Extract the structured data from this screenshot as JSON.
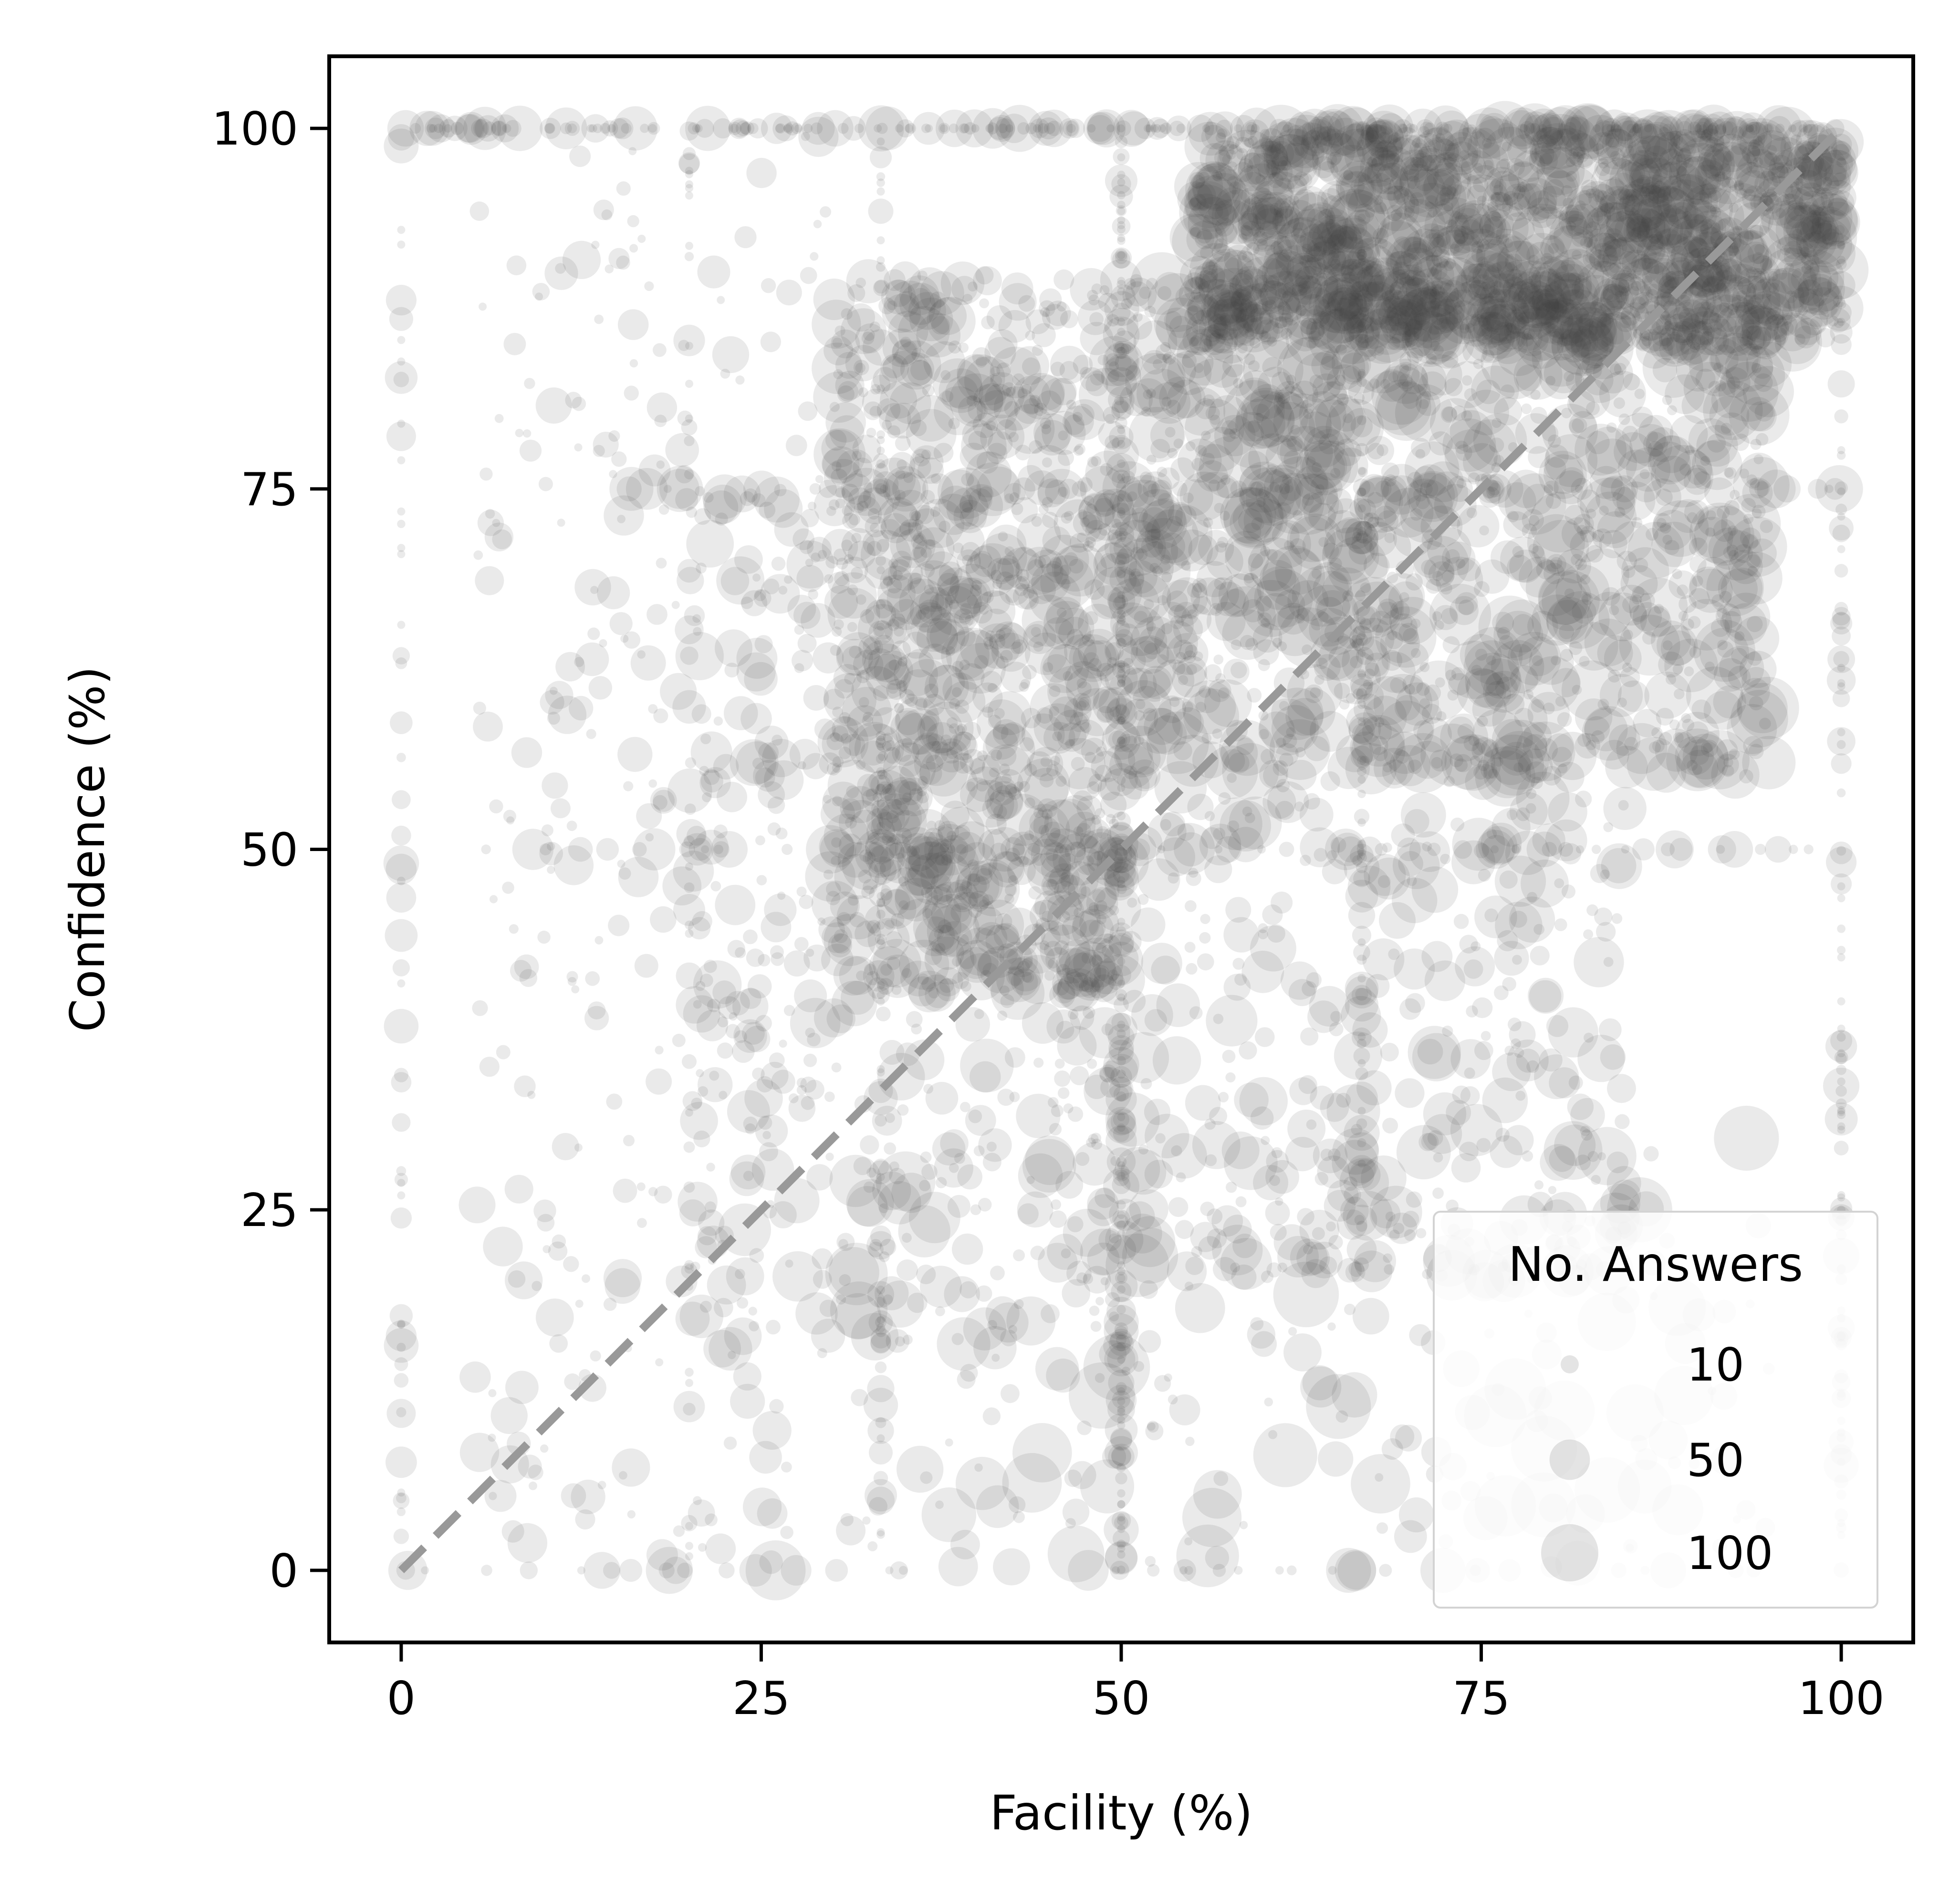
{
  "chart_data": {
    "type": "scatter",
    "title": "",
    "xlabel": "Facility (%)",
    "ylabel": "Confidence (%)",
    "xlim": [
      -5,
      105
    ],
    "ylim": [
      -5,
      105
    ],
    "xticks": [
      0,
      25,
      50,
      75,
      100
    ],
    "yticks": [
      0,
      25,
      50,
      75,
      100
    ],
    "tick_labels": {
      "x": [
        "0",
        "25",
        "50",
        "75",
        "100"
      ],
      "y": [
        "0",
        "25",
        "50",
        "75",
        "100"
      ]
    },
    "grid": false,
    "reference_line": {
      "style": "dashed",
      "color": "#999999",
      "from": [
        0,
        0
      ],
      "to": [
        100,
        100
      ]
    },
    "point_color": "#404040",
    "legend": {
      "title": "No. Answers",
      "placement": "bottom-right",
      "entries": [
        {
          "label": "10",
          "size_value": 10
        },
        {
          "label": "50",
          "size_value": 50
        },
        {
          "label": "100",
          "size_value": 100
        }
      ]
    },
    "dense_regions": [
      {
        "x_range": [
          55,
          100
        ],
        "y_range": [
          85,
          100
        ],
        "n": 1500,
        "size_range": [
          3,
          120
        ]
      },
      {
        "x_range": [
          50,
          95
        ],
        "y_range": [
          55,
          90
        ],
        "n": 1400,
        "size_range": [
          3,
          120
        ]
      },
      {
        "x_range": [
          30,
          50
        ],
        "y_range": [
          40,
          90
        ],
        "n": 900,
        "size_range": [
          3,
          90
        ]
      },
      {
        "x_range": [
          20,
          50
        ],
        "y_range": [
          15,
          75
        ],
        "n": 500,
        "size_range": [
          3,
          90
        ]
      },
      {
        "x_range": [
          45,
          85
        ],
        "y_range": [
          20,
          55
        ],
        "n": 450,
        "size_range": [
          3,
          90
        ]
      },
      {
        "x_range": [
          5,
          30
        ],
        "y_range": [
          0,
          100
        ],
        "n": 320,
        "size_range": [
          2,
          50
        ]
      },
      {
        "x_range": [
          30,
          95
        ],
        "y_range": [
          0,
          30
        ],
        "n": 220,
        "size_range": [
          2,
          140
        ]
      }
    ],
    "column_clusters": [
      {
        "x": 0,
        "y_range": [
          0,
          100
        ],
        "n": 55
      },
      {
        "x": 20,
        "y_range": [
          0,
          100
        ],
        "n": 45
      },
      {
        "x": 33.3,
        "y_range": [
          0,
          100
        ],
        "n": 90
      },
      {
        "x": 50,
        "y_range": [
          0,
          100
        ],
        "n": 220
      },
      {
        "x": 66.7,
        "y_range": [
          20,
          100
        ],
        "n": 90
      },
      {
        "x": 100,
        "y_range": [
          0,
          100
        ],
        "n": 110
      }
    ],
    "row_clusters": [
      {
        "y": 100,
        "x_range": [
          0,
          100
        ],
        "n": 260
      },
      {
        "y": 0,
        "x_range": [
          0,
          95
        ],
        "n": 45
      },
      {
        "y": 50,
        "x_range": [
          0,
          100
        ],
        "n": 70
      },
      {
        "y": 75,
        "x_range": [
          15,
          100
        ],
        "n": 60
      }
    ],
    "highlighted_points": [
      {
        "x": 86,
        "y": 25,
        "size": 130
      },
      {
        "x": 56,
        "y": 1,
        "size": 120
      },
      {
        "x": 26,
        "y": 0,
        "size": 110
      },
      {
        "x": 71,
        "y": 29,
        "size": 90
      },
      {
        "x": 90,
        "y": 58,
        "size": 60
      },
      {
        "x": 0,
        "y": 7.5,
        "size": 30
      },
      {
        "x": 7,
        "y": 71.5,
        "size": 12
      },
      {
        "x": 8,
        "y": 90.5,
        "size": 12
      }
    ]
  }
}
